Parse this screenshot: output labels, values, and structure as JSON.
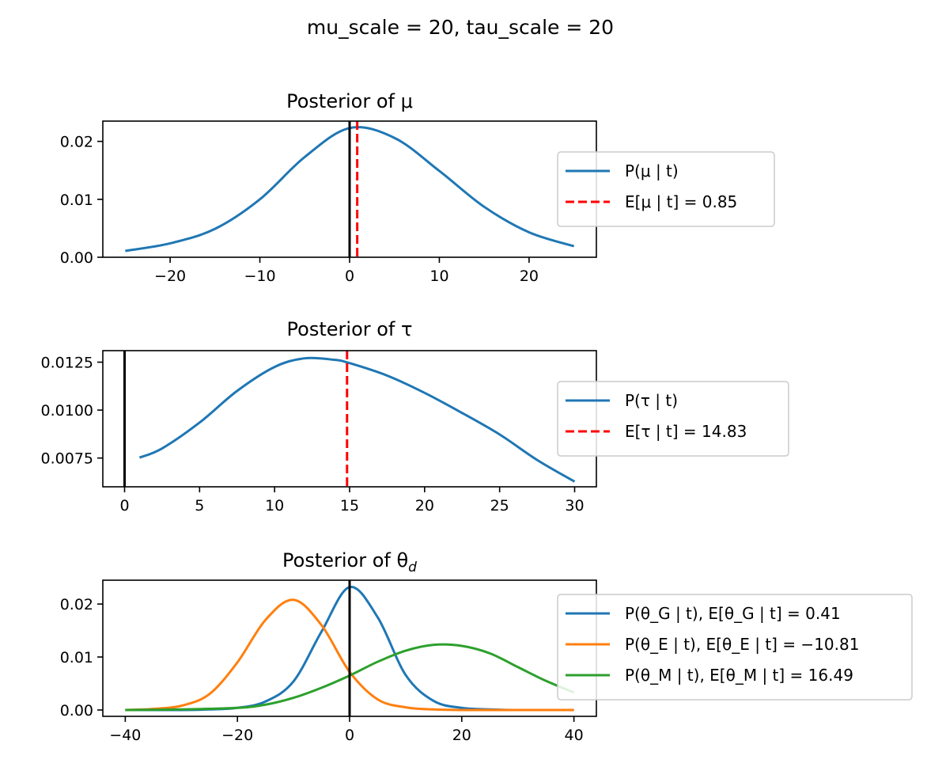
{
  "suptitle": "mu_scale = 20, tau_scale = 20",
  "chart_data": [
    {
      "type": "line",
      "title": "Posterior of μ",
      "xlim": [
        -27.5,
        27.5
      ],
      "ylim": [
        0,
        0.0235
      ],
      "xticks": [
        -20,
        -10,
        0,
        10,
        20
      ],
      "xtick_labels": [
        "−20",
        "−10",
        "0",
        "10",
        "20"
      ],
      "yticks": [
        0,
        0.01,
        0.02
      ],
      "ytick_labels": [
        "0.00",
        "0.01",
        "0.02"
      ],
      "vlines": [
        {
          "x": 0,
          "color": "#000000",
          "style": "solid"
        },
        {
          "x": 0.85,
          "color": "#ff0000",
          "style": "dashed"
        }
      ],
      "legend_position": "right-outside",
      "series": [
        {
          "name": "P(μ | t)",
          "color": "#1f77b4",
          "x": [
            -25,
            -20,
            -15,
            -10,
            -5,
            0,
            5,
            10,
            15,
            20,
            25
          ],
          "y": [
            0.0011,
            0.0024,
            0.0049,
            0.01,
            0.0173,
            0.0223,
            0.0206,
            0.0149,
            0.0087,
            0.0043,
            0.0019
          ]
        }
      ],
      "legend": [
        {
          "label": "P(μ | t)",
          "color": "#1f77b4",
          "style": "solid"
        },
        {
          "label": "E[μ | t] = 0.85",
          "color": "#ff0000",
          "style": "dashed"
        }
      ]
    },
    {
      "type": "line",
      "title": "Posterior of τ",
      "xlim": [
        -1.45,
        31.45
      ],
      "ylim": [
        0.006,
        0.0131
      ],
      "xticks": [
        0,
        5,
        10,
        15,
        20,
        25,
        30
      ],
      "xtick_labels": [
        "0",
        "5",
        "10",
        "15",
        "20",
        "25",
        "30"
      ],
      "yticks": [
        0.0075,
        0.01,
        0.0125
      ],
      "ytick_labels": [
        "0.0075",
        "0.0100",
        "0.0125"
      ],
      "vlines": [
        {
          "x": 0,
          "color": "#000000",
          "style": "solid"
        },
        {
          "x": 14.83,
          "color": "#ff0000",
          "style": "dashed"
        }
      ],
      "legend_position": "right-outside",
      "series": [
        {
          "name": "P(τ | t)",
          "color": "#1f77b4",
          "x": [
            1,
            2.5,
            5,
            7.5,
            10,
            12,
            14,
            15,
            17.5,
            20,
            22.5,
            25,
            27.5,
            30
          ],
          "y": [
            0.00752,
            0.008,
            0.00935,
            0.011,
            0.01225,
            0.0127,
            0.01262,
            0.01245,
            0.0118,
            0.0109,
            0.00985,
            0.00873,
            0.0074,
            0.00627
          ]
        }
      ],
      "legend": [
        {
          "label": "P(τ | t)",
          "color": "#1f77b4",
          "style": "solid"
        },
        {
          "label": "E[τ | t] = 14.83",
          "color": "#ff0000",
          "style": "dashed"
        }
      ]
    },
    {
      "type": "line",
      "title": "Posterior of θ_d",
      "xlim": [
        -44,
        44
      ],
      "ylim": [
        -0.0012,
        0.0245
      ],
      "xticks": [
        -40,
        -20,
        0,
        20,
        40
      ],
      "xtick_labels": [
        "−40",
        "−20",
        "0",
        "20",
        "40"
      ],
      "yticks": [
        0,
        0.01,
        0.02
      ],
      "ytick_labels": [
        "0.00",
        "0.01",
        "0.02"
      ],
      "vlines": [
        {
          "x": 0,
          "color": "#000000",
          "style": "solid"
        }
      ],
      "legend_position": "right-outside",
      "series": [
        {
          "name": "P(θ_G | t), E[θ_G | t] = 0.41",
          "color": "#1f77b4",
          "x": [
            -40,
            -30,
            -25,
            -20,
            -15,
            -10,
            -5,
            0,
            5,
            10,
            15,
            20,
            25,
            30,
            40
          ],
          "y": [
            0.0,
            0.0,
            0.0001,
            0.0004,
            0.0016,
            0.0054,
            0.0148,
            0.0232,
            0.0175,
            0.0066,
            0.0017,
            0.0004,
            0.0001,
            0.0,
            0.0
          ]
        },
        {
          "name": "P(θ_E | t), E[θ_E | t] = −10.81",
          "color": "#ff7f0e",
          "x": [
            -40,
            -35,
            -30,
            -25,
            -20,
            -15,
            -10,
            -5,
            0,
            5,
            10,
            15,
            20,
            30,
            40
          ],
          "y": [
            0.0,
            0.0002,
            0.0008,
            0.003,
            0.009,
            0.017,
            0.0208,
            0.016,
            0.0072,
            0.002,
            0.0005,
            0.0001,
            0.0,
            0.0,
            0.0
          ]
        },
        {
          "name": "P(θ_M | t), E[θ_M | t] = 16.49",
          "color": "#2ca02c",
          "x": [
            -40,
            -30,
            -20,
            -15,
            -10,
            -5,
            0,
            5,
            10,
            15,
            20,
            25,
            30,
            35,
            40
          ],
          "y": [
            0.0,
            0.0001,
            0.0004,
            0.001,
            0.0023,
            0.0042,
            0.0065,
            0.0091,
            0.0112,
            0.0123,
            0.0121,
            0.0107,
            0.0081,
            0.0055,
            0.0033
          ]
        }
      ],
      "legend": [
        {
          "label": "P(θ_G | t),  E[θ_G | t] = 0.41",
          "color": "#1f77b4",
          "style": "solid"
        },
        {
          "label": "P(θ_E | t),  E[θ_E | t] = −10.81",
          "color": "#ff7f0e",
          "style": "solid"
        },
        {
          "label": "P(θ_M | t),  E[θ_M | t] = 16.49",
          "color": "#2ca02c",
          "style": "solid"
        }
      ]
    }
  ]
}
